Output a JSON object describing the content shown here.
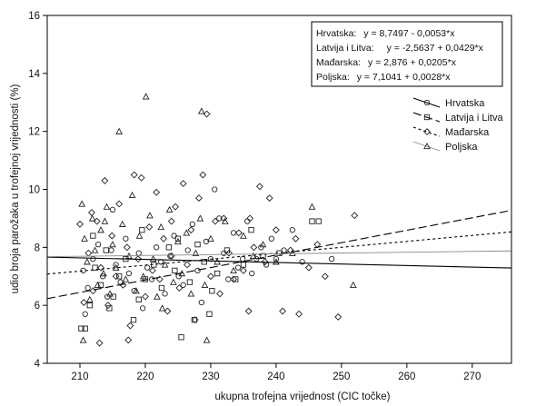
{
  "chart_data": {
    "type": "scatter",
    "title": "",
    "xlabel": "ukupna trofejna vrijednost (CIC točke)",
    "ylabel": "udio broja parožaka u trofejnoj vrijednosti (%)",
    "xlim": [
      205,
      276
    ],
    "ylim": [
      4,
      16
    ],
    "xticks": [
      210,
      220,
      230,
      240,
      250,
      260,
      270
    ],
    "yticks": [
      4,
      6,
      8,
      10,
      12,
      14,
      16
    ],
    "grid": false,
    "legend_position": "upper-right",
    "equations": [
      {
        "label": "Hrvatska:",
        "text": "y = 8,7497 - 0,0053*x"
      },
      {
        "label": "Latvija i Litva:",
        "text": "y = -2,5637 + 0,0429*x"
      },
      {
        "label": "Mađarska:",
        "text": "y = 2,876 + 0,0205*x"
      },
      {
        "label": "Poljska:",
        "text": "y = 7,1041 + 0,0028*x"
      }
    ],
    "series": [
      {
        "name": "Hrvatska",
        "marker": "circle",
        "line": {
          "intercept": 8.7497,
          "slope": -0.0053,
          "style": "solid"
        },
        "points": [
          [
            210.5,
            7.2
          ],
          [
            211.2,
            6.6
          ],
          [
            212,
            7.6
          ],
          [
            212.8,
            8.1
          ],
          [
            213.5,
            7.0
          ],
          [
            214.2,
            6.3
          ],
          [
            214.8,
            7.9
          ],
          [
            215.5,
            7.4
          ],
          [
            216.2,
            6.8
          ],
          [
            217,
            8.3
          ],
          [
            217.5,
            7.1
          ],
          [
            218.3,
            6.5
          ],
          [
            219,
            7.8
          ],
          [
            219.6,
            5.9
          ],
          [
            220.3,
            7.3
          ],
          [
            221,
            6.9
          ],
          [
            221.7,
            8.0
          ],
          [
            222.4,
            7.5
          ],
          [
            223,
            6.4
          ],
          [
            223.8,
            7.7
          ],
          [
            224.4,
            8.4
          ],
          [
            225.1,
            7.0
          ],
          [
            225.8,
            6.7
          ],
          [
            226.5,
            7.9
          ],
          [
            227.2,
            8.8
          ],
          [
            228,
            7.2
          ],
          [
            228.6,
            6.1
          ],
          [
            229.3,
            8.2
          ],
          [
            230,
            7.6
          ],
          [
            230.6,
            10.0
          ],
          [
            231.3,
            9.0
          ],
          [
            232,
            7.8
          ],
          [
            232.7,
            6.9
          ],
          [
            233.5,
            8.5
          ],
          [
            234.2,
            7.3
          ],
          [
            234.9,
            7.6
          ],
          [
            235.6,
            8.9
          ],
          [
            236.3,
            7.1
          ],
          [
            237,
            7.6
          ],
          [
            237.7,
            8.0
          ],
          [
            238.5,
            7.4
          ],
          [
            239.3,
            8.3
          ],
          [
            240,
            7.6
          ],
          [
            241.2,
            7.9
          ],
          [
            242.5,
            8.6
          ],
          [
            244,
            7.5
          ],
          [
            248.5,
            7.6
          ],
          [
            210.8,
            5.7
          ],
          [
            215,
            9.3
          ]
        ]
      },
      {
        "name": "Latvija i Litva",
        "marker": "square",
        "line": {
          "intercept": -2.5637,
          "slope": 0.0429,
          "style": "longdash"
        },
        "points": [
          [
            210.2,
            5.2
          ],
          [
            210.8,
            5.2
          ],
          [
            211.5,
            6.0
          ],
          [
            212.3,
            7.3
          ],
          [
            213.2,
            6.7
          ],
          [
            214,
            7.9
          ],
          [
            215.1,
            6.3
          ],
          [
            216,
            7.0
          ],
          [
            217,
            7.6
          ],
          [
            218.2,
            5.5
          ],
          [
            219,
            6.2
          ],
          [
            220,
            6.9
          ],
          [
            221.3,
            7.4
          ],
          [
            222.5,
            6.6
          ],
          [
            223.6,
            8.0
          ],
          [
            224.5,
            7.2
          ],
          [
            225.5,
            4.9
          ],
          [
            226.8,
            6.8
          ],
          [
            228,
            8.1
          ],
          [
            229,
            7.5
          ],
          [
            229.8,
            5.7
          ],
          [
            231,
            7.1
          ],
          [
            232.5,
            7.9
          ],
          [
            233.8,
            6.9
          ],
          [
            235,
            7.4
          ],
          [
            236.2,
            8.6
          ],
          [
            238,
            7.7
          ],
          [
            240.5,
            7.8
          ],
          [
            245.5,
            8.9
          ],
          [
            246.5,
            8.9
          ],
          [
            230.2,
            6.5
          ],
          [
            227.5,
            5.5
          ],
          [
            219.5,
            8.6
          ],
          [
            225,
            8.3
          ],
          [
            212,
            8.4
          ],
          [
            214.5,
            5.9
          ]
        ]
      },
      {
        "name": "Mađarska",
        "marker": "diamond",
        "line": {
          "intercept": 2.876,
          "slope": 0.0205,
          "style": "dotted"
        },
        "points": [
          [
            210,
            8.8
          ],
          [
            210.6,
            6.1
          ],
          [
            211.3,
            7.8
          ],
          [
            212,
            6.5
          ],
          [
            212.6,
            8.9
          ],
          [
            213.2,
            7.3
          ],
          [
            213.8,
            10.3
          ],
          [
            214.3,
            6.0
          ],
          [
            214.9,
            8.4
          ],
          [
            215.5,
            7.0
          ],
          [
            216,
            9.5
          ],
          [
            216.6,
            6.7
          ],
          [
            217.2,
            8.0
          ],
          [
            217.7,
            5.3
          ],
          [
            218.3,
            10.5
          ],
          [
            218.9,
            7.6
          ],
          [
            219.4,
            10.4
          ],
          [
            220,
            6.3
          ],
          [
            220.6,
            8.7
          ],
          [
            221.1,
            7.2
          ],
          [
            221.7,
            9.9
          ],
          [
            222.2,
            6.9
          ],
          [
            222.8,
            8.3
          ],
          [
            223.4,
            5.8
          ],
          [
            224,
            7.7
          ],
          [
            224.6,
            9.4
          ],
          [
            225.2,
            6.6
          ],
          [
            225.8,
            10.2
          ],
          [
            226.4,
            7.4
          ],
          [
            227,
            8.6
          ],
          [
            227.6,
            5.5
          ],
          [
            228.2,
            9.7
          ],
          [
            228.8,
            10.5
          ],
          [
            229.4,
            12.6
          ],
          [
            230,
            7.0
          ],
          [
            230.7,
            8.9
          ],
          [
            231.4,
            6.4
          ],
          [
            232,
            9.0
          ],
          [
            232.8,
            7.8
          ],
          [
            233.5,
            6.9
          ],
          [
            234.3,
            8.5
          ],
          [
            235,
            7.2
          ],
          [
            235.8,
            5.8
          ],
          [
            236.6,
            8.0
          ],
          [
            237.5,
            10.1
          ],
          [
            238.3,
            7.5
          ],
          [
            239,
            9.7
          ],
          [
            240,
            8.6
          ],
          [
            241,
            5.8
          ],
          [
            242.2,
            7.9
          ],
          [
            243.5,
            5.7
          ],
          [
            245,
            7.3
          ],
          [
            246.3,
            8.1
          ],
          [
            247.5,
            7.0
          ],
          [
            249.5,
            5.6
          ],
          [
            252,
            9.1
          ],
          [
            213,
            4.7
          ],
          [
            217.4,
            4.8
          ],
          [
            224,
            8.9
          ],
          [
            211.8,
            9.2
          ],
          [
            236,
            9.0
          ],
          [
            243,
            8.3
          ]
        ]
      },
      {
        "name": "Poljska",
        "marker": "triangle",
        "line": {
          "intercept": 7.1041,
          "slope": 0.0028,
          "style": "solid-light"
        },
        "points": [
          [
            210.3,
            9.5
          ],
          [
            210.7,
            8.3
          ],
          [
            211.1,
            7.5
          ],
          [
            211.5,
            6.2
          ],
          [
            211.9,
            9.0
          ],
          [
            212.3,
            7.9
          ],
          [
            212.7,
            6.7
          ],
          [
            213.2,
            8.6
          ],
          [
            213.6,
            7.1
          ],
          [
            214.1,
            9.4
          ],
          [
            214.6,
            6.4
          ],
          [
            215,
            8.1
          ],
          [
            215.5,
            7.3
          ],
          [
            216,
            12.0
          ],
          [
            216.5,
            8.8
          ],
          [
            217,
            6.9
          ],
          [
            217.5,
            7.7
          ],
          [
            218,
            9.8
          ],
          [
            218.6,
            6.5
          ],
          [
            219.1,
            8.4
          ],
          [
            219.7,
            7.0
          ],
          [
            220.1,
            13.2
          ],
          [
            220.7,
            9.1
          ],
          [
            221.2,
            7.6
          ],
          [
            221.8,
            6.3
          ],
          [
            222.4,
            8.7
          ],
          [
            223,
            7.4
          ],
          [
            223.7,
            9.3
          ],
          [
            224.3,
            6.8
          ],
          [
            225,
            8.2
          ],
          [
            225.6,
            7.1
          ],
          [
            226.3,
            8.5
          ],
          [
            227,
            6.4
          ],
          [
            227.7,
            7.8
          ],
          [
            228.4,
            9.0
          ],
          [
            228.6,
            12.7
          ],
          [
            229.4,
            4.8
          ],
          [
            229.1,
            6.7
          ],
          [
            230,
            8.3
          ],
          [
            231,
            7.5
          ],
          [
            232.2,
            8.9
          ],
          [
            233.5,
            7.2
          ],
          [
            235,
            8.4
          ],
          [
            236.5,
            7.7
          ],
          [
            238,
            8.1
          ],
          [
            240,
            7.5
          ],
          [
            242.5,
            7.8
          ],
          [
            245.5,
            9.4
          ],
          [
            251.8,
            6.7
          ],
          [
            210.5,
            4.8
          ],
          [
            213.8,
            8.9
          ],
          [
            222.6,
            5.9
          ]
        ]
      }
    ]
  }
}
